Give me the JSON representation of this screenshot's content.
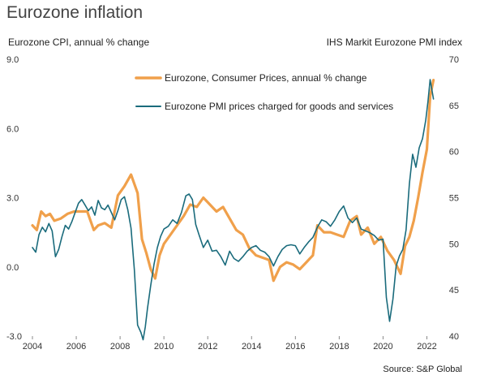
{
  "page": {
    "title": "Eurozone inflation",
    "source": "Source: S&P Global"
  },
  "chart_data": {
    "type": "line",
    "title": "Eurozone inflation",
    "ylabel": "Eurozone CPI, annual % change",
    "ylabel_right": "IHS Markit Eurozone PMI index",
    "xlim": [
      2004.0,
      2022.5
    ],
    "ylim": [
      -3.0,
      9.0
    ],
    "ylim_right": [
      40,
      70
    ],
    "xticks": [
      "2004",
      "2006",
      "2008",
      "2010",
      "2012",
      "2014",
      "2016",
      "2018",
      "2020",
      "2022"
    ],
    "xtick_values": [
      2004,
      2006,
      2008,
      2010,
      2012,
      2014,
      2016,
      2018,
      2020,
      2022
    ],
    "yticks_left": [
      "9.0",
      "6.0",
      "3.0",
      "0.0",
      "-3.0"
    ],
    "ytick_values_left": [
      9.0,
      6.0,
      3.0,
      0.0,
      -3.0
    ],
    "yticks_right": [
      "70",
      "65",
      "60",
      "55",
      "50",
      "45",
      "40"
    ],
    "ytick_values_right": [
      70,
      65,
      60,
      55,
      50,
      45,
      40
    ],
    "grid": false,
    "legend": "top-center",
    "colors": {
      "cpi": "#f0a04b",
      "pmi": "#1a6b7c"
    },
    "series": [
      {
        "name": "Eurozone, Consumer Prices, annual % change",
        "axis": "left",
        "x": [
          2004.0,
          2004.2,
          2004.4,
          2004.6,
          2004.8,
          2005.0,
          2005.3,
          2005.6,
          2005.9,
          2006.2,
          2006.5,
          2006.8,
          2007.0,
          2007.3,
          2007.6,
          2007.9,
          2008.2,
          2008.5,
          2008.8,
          2009.0,
          2009.2,
          2009.4,
          2009.6,
          2009.8,
          2010.0,
          2010.3,
          2010.6,
          2010.9,
          2011.2,
          2011.5,
          2011.8,
          2012.1,
          2012.4,
          2012.7,
          2013.0,
          2013.3,
          2013.6,
          2013.9,
          2014.2,
          2014.5,
          2014.8,
          2015.0,
          2015.3,
          2015.6,
          2015.9,
          2016.2,
          2016.5,
          2016.8,
          2017.0,
          2017.3,
          2017.6,
          2017.9,
          2018.2,
          2018.5,
          2018.8,
          2019.0,
          2019.3,
          2019.6,
          2019.9,
          2020.2,
          2020.5,
          2020.8,
          2021.0,
          2021.2,
          2021.4,
          2021.6,
          2021.8,
          2022.0,
          2022.15,
          2022.3
        ],
        "values": [
          1.8,
          1.6,
          2.4,
          2.2,
          2.3,
          2.0,
          2.1,
          2.3,
          2.4,
          2.4,
          2.4,
          1.6,
          1.8,
          1.9,
          1.7,
          3.1,
          3.5,
          4.0,
          3.2,
          1.2,
          0.6,
          -0.1,
          -0.5,
          0.5,
          1.0,
          1.4,
          1.8,
          2.2,
          2.7,
          2.6,
          3.0,
          2.7,
          2.4,
          2.6,
          2.1,
          1.6,
          1.4,
          0.8,
          0.5,
          0.4,
          0.3,
          -0.6,
          0.0,
          0.2,
          0.1,
          -0.1,
          0.2,
          0.5,
          1.8,
          1.5,
          1.5,
          1.4,
          1.3,
          2.0,
          2.2,
          1.4,
          1.7,
          1.0,
          1.3,
          0.7,
          0.3,
          -0.3,
          0.9,
          1.3,
          2.0,
          3.0,
          4.1,
          5.1,
          7.4,
          8.1
        ]
      },
      {
        "name": "Eurozone PMI prices charged for goods and services",
        "axis": "right",
        "x": [
          2004.0,
          2004.15,
          2004.3,
          2004.45,
          2004.6,
          2004.75,
          2004.9,
          2005.05,
          2005.2,
          2005.35,
          2005.5,
          2005.65,
          2005.8,
          2005.95,
          2006.1,
          2006.25,
          2006.4,
          2006.55,
          2006.7,
          2006.85,
          2007.0,
          2007.15,
          2007.3,
          2007.45,
          2007.6,
          2007.75,
          2007.9,
          2008.05,
          2008.2,
          2008.35,
          2008.5,
          2008.65,
          2008.8,
          2008.95,
          2009.05,
          2009.15,
          2009.25,
          2009.4,
          2009.55,
          2009.7,
          2009.85,
          2010.0,
          2010.2,
          2010.4,
          2010.6,
          2010.8,
          2011.0,
          2011.15,
          2011.3,
          2011.45,
          2011.6,
          2011.8,
          2012.0,
          2012.2,
          2012.4,
          2012.6,
          2012.8,
          2013.0,
          2013.2,
          2013.4,
          2013.6,
          2013.8,
          2014.0,
          2014.2,
          2014.4,
          2014.6,
          2014.8,
          2015.0,
          2015.2,
          2015.4,
          2015.6,
          2015.8,
          2016.0,
          2016.2,
          2016.4,
          2016.6,
          2016.8,
          2017.0,
          2017.2,
          2017.4,
          2017.6,
          2017.8,
          2018.0,
          2018.2,
          2018.4,
          2018.6,
          2018.8,
          2019.0,
          2019.2,
          2019.4,
          2019.6,
          2019.8,
          2020.0,
          2020.15,
          2020.3,
          2020.45,
          2020.6,
          2020.75,
          2020.9,
          2021.05,
          2021.2,
          2021.35,
          2021.5,
          2021.65,
          2021.8,
          2021.95,
          2022.05,
          2022.15,
          2022.3
        ],
        "values": [
          49.6,
          49.1,
          51.0,
          51.8,
          51.3,
          52.2,
          51.4,
          48.6,
          49.4,
          50.8,
          52.0,
          51.6,
          52.4,
          53.4,
          54.4,
          54.8,
          54.2,
          53.6,
          54.0,
          53.1,
          54.7,
          53.9,
          53.7,
          54.2,
          53.4,
          52.6,
          53.6,
          54.8,
          55.1,
          53.7,
          51.7,
          47.2,
          41.2,
          40.4,
          39.6,
          41.0,
          43.0,
          45.5,
          47.8,
          49.6,
          50.8,
          51.6,
          51.9,
          52.6,
          52.2,
          53.4,
          55.2,
          55.4,
          54.8,
          52.1,
          51.0,
          49.6,
          50.4,
          49.2,
          49.3,
          48.6,
          47.7,
          49.2,
          48.4,
          48.1,
          48.6,
          49.2,
          49.6,
          49.8,
          49.3,
          49.1,
          48.6,
          47.6,
          48.6,
          49.4,
          49.8,
          49.9,
          49.8,
          48.9,
          49.6,
          50.2,
          50.7,
          51.8,
          52.6,
          52.4,
          51.9,
          52.6,
          53.5,
          54.1,
          52.8,
          52.3,
          52.8,
          51.6,
          51.4,
          51.2,
          50.9,
          50.4,
          50.5,
          44.2,
          41.6,
          44.0,
          47.6,
          48.7,
          49.4,
          51.5,
          56.5,
          59.7,
          58.3,
          60.4,
          61.4,
          63.4,
          65.4,
          67.8,
          65.7
        ]
      }
    ]
  }
}
